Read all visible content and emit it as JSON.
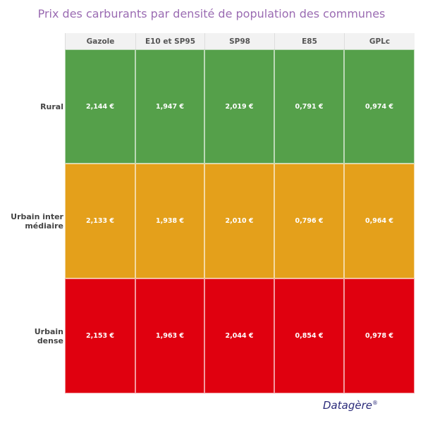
{
  "header": {
    "title": "Prix des carburants par densité de population des communes"
  },
  "table": {
    "columns": [
      "Gazole",
      "E10 et SP95",
      "SP98",
      "E85",
      "GPLc"
    ],
    "rows": [
      {
        "label": [
          "Rural"
        ],
        "cells": [
          "2,144 €",
          "1,947 €",
          "2,019 €",
          "0,791 €",
          "0,974 €"
        ]
      },
      {
        "label": [
          "Urbain inter",
          "médiaire"
        ],
        "cells": [
          "2,133 €",
          "1,938 €",
          "2,010 €",
          "0,796 €",
          "0,964 €"
        ]
      },
      {
        "label": [
          "Urbain",
          "dense"
        ],
        "cells": [
          "2,153 €",
          "1,963 €",
          "2,044 €",
          "0,854 €",
          "0,978 €"
        ]
      }
    ]
  },
  "footer": {
    "logo": "Datagère",
    "mark": "®"
  }
}
